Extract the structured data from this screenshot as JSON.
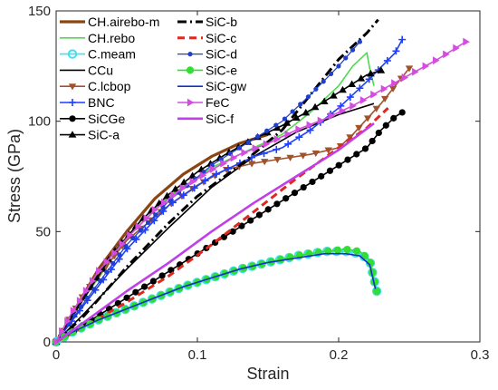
{
  "chart_data": {
    "type": "line",
    "title": "",
    "xlabel": "Strain",
    "ylabel": "Stress (GPa)",
    "xlim": [
      0,
      0.3
    ],
    "ylim": [
      0,
      150
    ],
    "xticks": [
      0,
      0.1,
      0.2,
      0.3
    ],
    "xtick_labels": [
      "0",
      "0.1",
      "0.2",
      "0.3"
    ],
    "yticks": [
      0,
      50,
      100,
      150
    ],
    "ytick_labels": [
      "0",
      "50",
      "100",
      "150"
    ],
    "grid": false,
    "legend_placement": "top-left",
    "series": [
      {
        "name": "CH.airebo-m",
        "color": "#8b4513",
        "style": "thick",
        "x": [
          0,
          0.01,
          0.03,
          0.05,
          0.07,
          0.09,
          0.11,
          0.13,
          0.15
        ],
        "y": [
          0,
          11,
          33,
          50,
          65,
          76,
          84,
          90,
          94
        ]
      },
      {
        "name": "CH.rebo",
        "color": "#4ddb4d",
        "style": "line",
        "x": [
          0,
          0.02,
          0.05,
          0.08,
          0.11,
          0.14,
          0.16,
          0.18,
          0.2,
          0.21,
          0.22,
          0.222,
          0.225
        ],
        "y": [
          0,
          20,
          47,
          66,
          79,
          88,
          94,
          104,
          116,
          125,
          131,
          124,
          116
        ]
      },
      {
        "name": "C.meam",
        "color": "#40e0f0",
        "style": "circle",
        "x": [
          0,
          0.01,
          0.03,
          0.05,
          0.07,
          0.09,
          0.11,
          0.13,
          0.15,
          0.17,
          0.19,
          0.205,
          0.215,
          0.222,
          0.227
        ],
        "y": [
          0,
          4,
          10,
          15,
          20,
          25,
          29,
          33,
          36,
          39,
          41,
          41,
          40,
          37,
          23
        ]
      },
      {
        "name": "CCu",
        "color": "#000000",
        "style": "line",
        "x": [
          0,
          0.02,
          0.05,
          0.08,
          0.11,
          0.14,
          0.17,
          0.2,
          0.225
        ],
        "y": [
          0,
          13,
          33,
          52,
          70,
          84,
          95,
          103,
          108
        ]
      },
      {
        "name": "C.lcbop",
        "color": "#a0522d",
        "style": "tri-down",
        "x": [
          0,
          0.02,
          0.05,
          0.08,
          0.1,
          0.12,
          0.14,
          0.16,
          0.18,
          0.2,
          0.21,
          0.22,
          0.23,
          0.24,
          0.25
        ],
        "y": [
          0,
          22,
          46,
          62,
          71,
          78,
          81,
          83,
          85,
          88,
          94,
          101,
          108,
          116,
          124
        ]
      },
      {
        "name": "BNC",
        "color": "#1f3fff",
        "style": "plus",
        "x": [
          0,
          0.02,
          0.05,
          0.08,
          0.11,
          0.14,
          0.16,
          0.18,
          0.2,
          0.22,
          0.24,
          0.245
        ],
        "y": [
          0,
          17,
          42,
          62,
          75,
          84,
          88,
          96,
          106,
          118,
          131,
          137
        ]
      },
      {
        "name": "SiCGe",
        "color": "#000000",
        "style": "dot",
        "x": [
          0,
          0.02,
          0.04,
          0.06,
          0.08,
          0.1,
          0.12,
          0.14,
          0.16,
          0.18,
          0.2,
          0.22,
          0.23,
          0.24,
          0.245
        ],
        "y": [
          0,
          8,
          16,
          24,
          32,
          40,
          48,
          56,
          64,
          72,
          80,
          88,
          96,
          102,
          104
        ]
      },
      {
        "name": "SiC-a",
        "color": "#000000",
        "style": "tri-up",
        "x": [
          0,
          0.02,
          0.04,
          0.06,
          0.08,
          0.1,
          0.12,
          0.14,
          0.16,
          0.18,
          0.2,
          0.21,
          0.22,
          0.23
        ],
        "y": [
          0,
          20,
          40,
          55,
          67,
          77,
          85,
          92,
          98,
          105,
          113,
          117,
          121,
          123
        ]
      },
      {
        "name": "SiC-b",
        "color": "#000000",
        "style": "dashdot",
        "x": [
          0,
          0.02,
          0.05,
          0.08,
          0.1,
          0.13,
          0.16,
          0.18,
          0.2,
          0.22,
          0.228
        ],
        "y": [
          0,
          12,
          34,
          54,
          66,
          80,
          96,
          112,
          128,
          140,
          146
        ]
      },
      {
        "name": "SiC-c",
        "color": "#e0281e",
        "style": "dash",
        "x": [
          0,
          0.02,
          0.05,
          0.08,
          0.11,
          0.14,
          0.17,
          0.2,
          0.22,
          0.235
        ],
        "y": [
          0,
          7,
          18,
          30,
          44,
          59,
          74,
          88,
          97,
          106
        ]
      },
      {
        "name": "SiC-d",
        "color": "#1f3fcc",
        "style": "smalldot",
        "x": [
          0,
          0.02,
          0.05,
          0.08,
          0.11,
          0.14,
          0.16,
          0.18,
          0.2,
          0.215
        ],
        "y": [
          0,
          18,
          44,
          64,
          80,
          92,
          100,
          112,
          125,
          136
        ]
      },
      {
        "name": "SiC-e",
        "color": "#33dd33",
        "style": "circle-fill",
        "x": [
          0,
          0.01,
          0.03,
          0.05,
          0.07,
          0.09,
          0.11,
          0.13,
          0.15,
          0.17,
          0.19,
          0.205,
          0.215,
          0.222,
          0.227
        ],
        "y": [
          0,
          4,
          10,
          15,
          20,
          25,
          29,
          33,
          36,
          39,
          41,
          42,
          41,
          37,
          23
        ]
      },
      {
        "name": "SiC-gw",
        "color": "#1530c8",
        "style": "line",
        "x": [
          0,
          0.01,
          0.03,
          0.05,
          0.07,
          0.09,
          0.11,
          0.13,
          0.15,
          0.17,
          0.19,
          0.205,
          0.215,
          0.222,
          0.226
        ],
        "y": [
          0,
          4,
          10,
          15,
          20,
          25,
          29,
          33,
          36,
          38,
          40,
          40,
          39,
          35,
          24
        ]
      },
      {
        "name": "FeC",
        "color": "#d44de0",
        "style": "tri-right",
        "x": [
          0,
          0.01,
          0.03,
          0.05,
          0.07,
          0.09,
          0.11,
          0.13,
          0.15,
          0.17,
          0.19,
          0.21,
          0.23,
          0.25,
          0.27,
          0.29
        ],
        "y": [
          0,
          12,
          32,
          47,
          60,
          70,
          78,
          85,
          90,
          96,
          101,
          107,
          114,
          121,
          128,
          136
        ]
      },
      {
        "name": "SiC-f",
        "color": "#c040e8",
        "style": "thickline",
        "x": [
          0,
          0.02,
          0.05,
          0.08,
          0.11,
          0.14,
          0.17,
          0.2,
          0.225
        ],
        "y": [
          0,
          9,
          23,
          36,
          50,
          63,
          75,
          87,
          99
        ]
      }
    ]
  }
}
